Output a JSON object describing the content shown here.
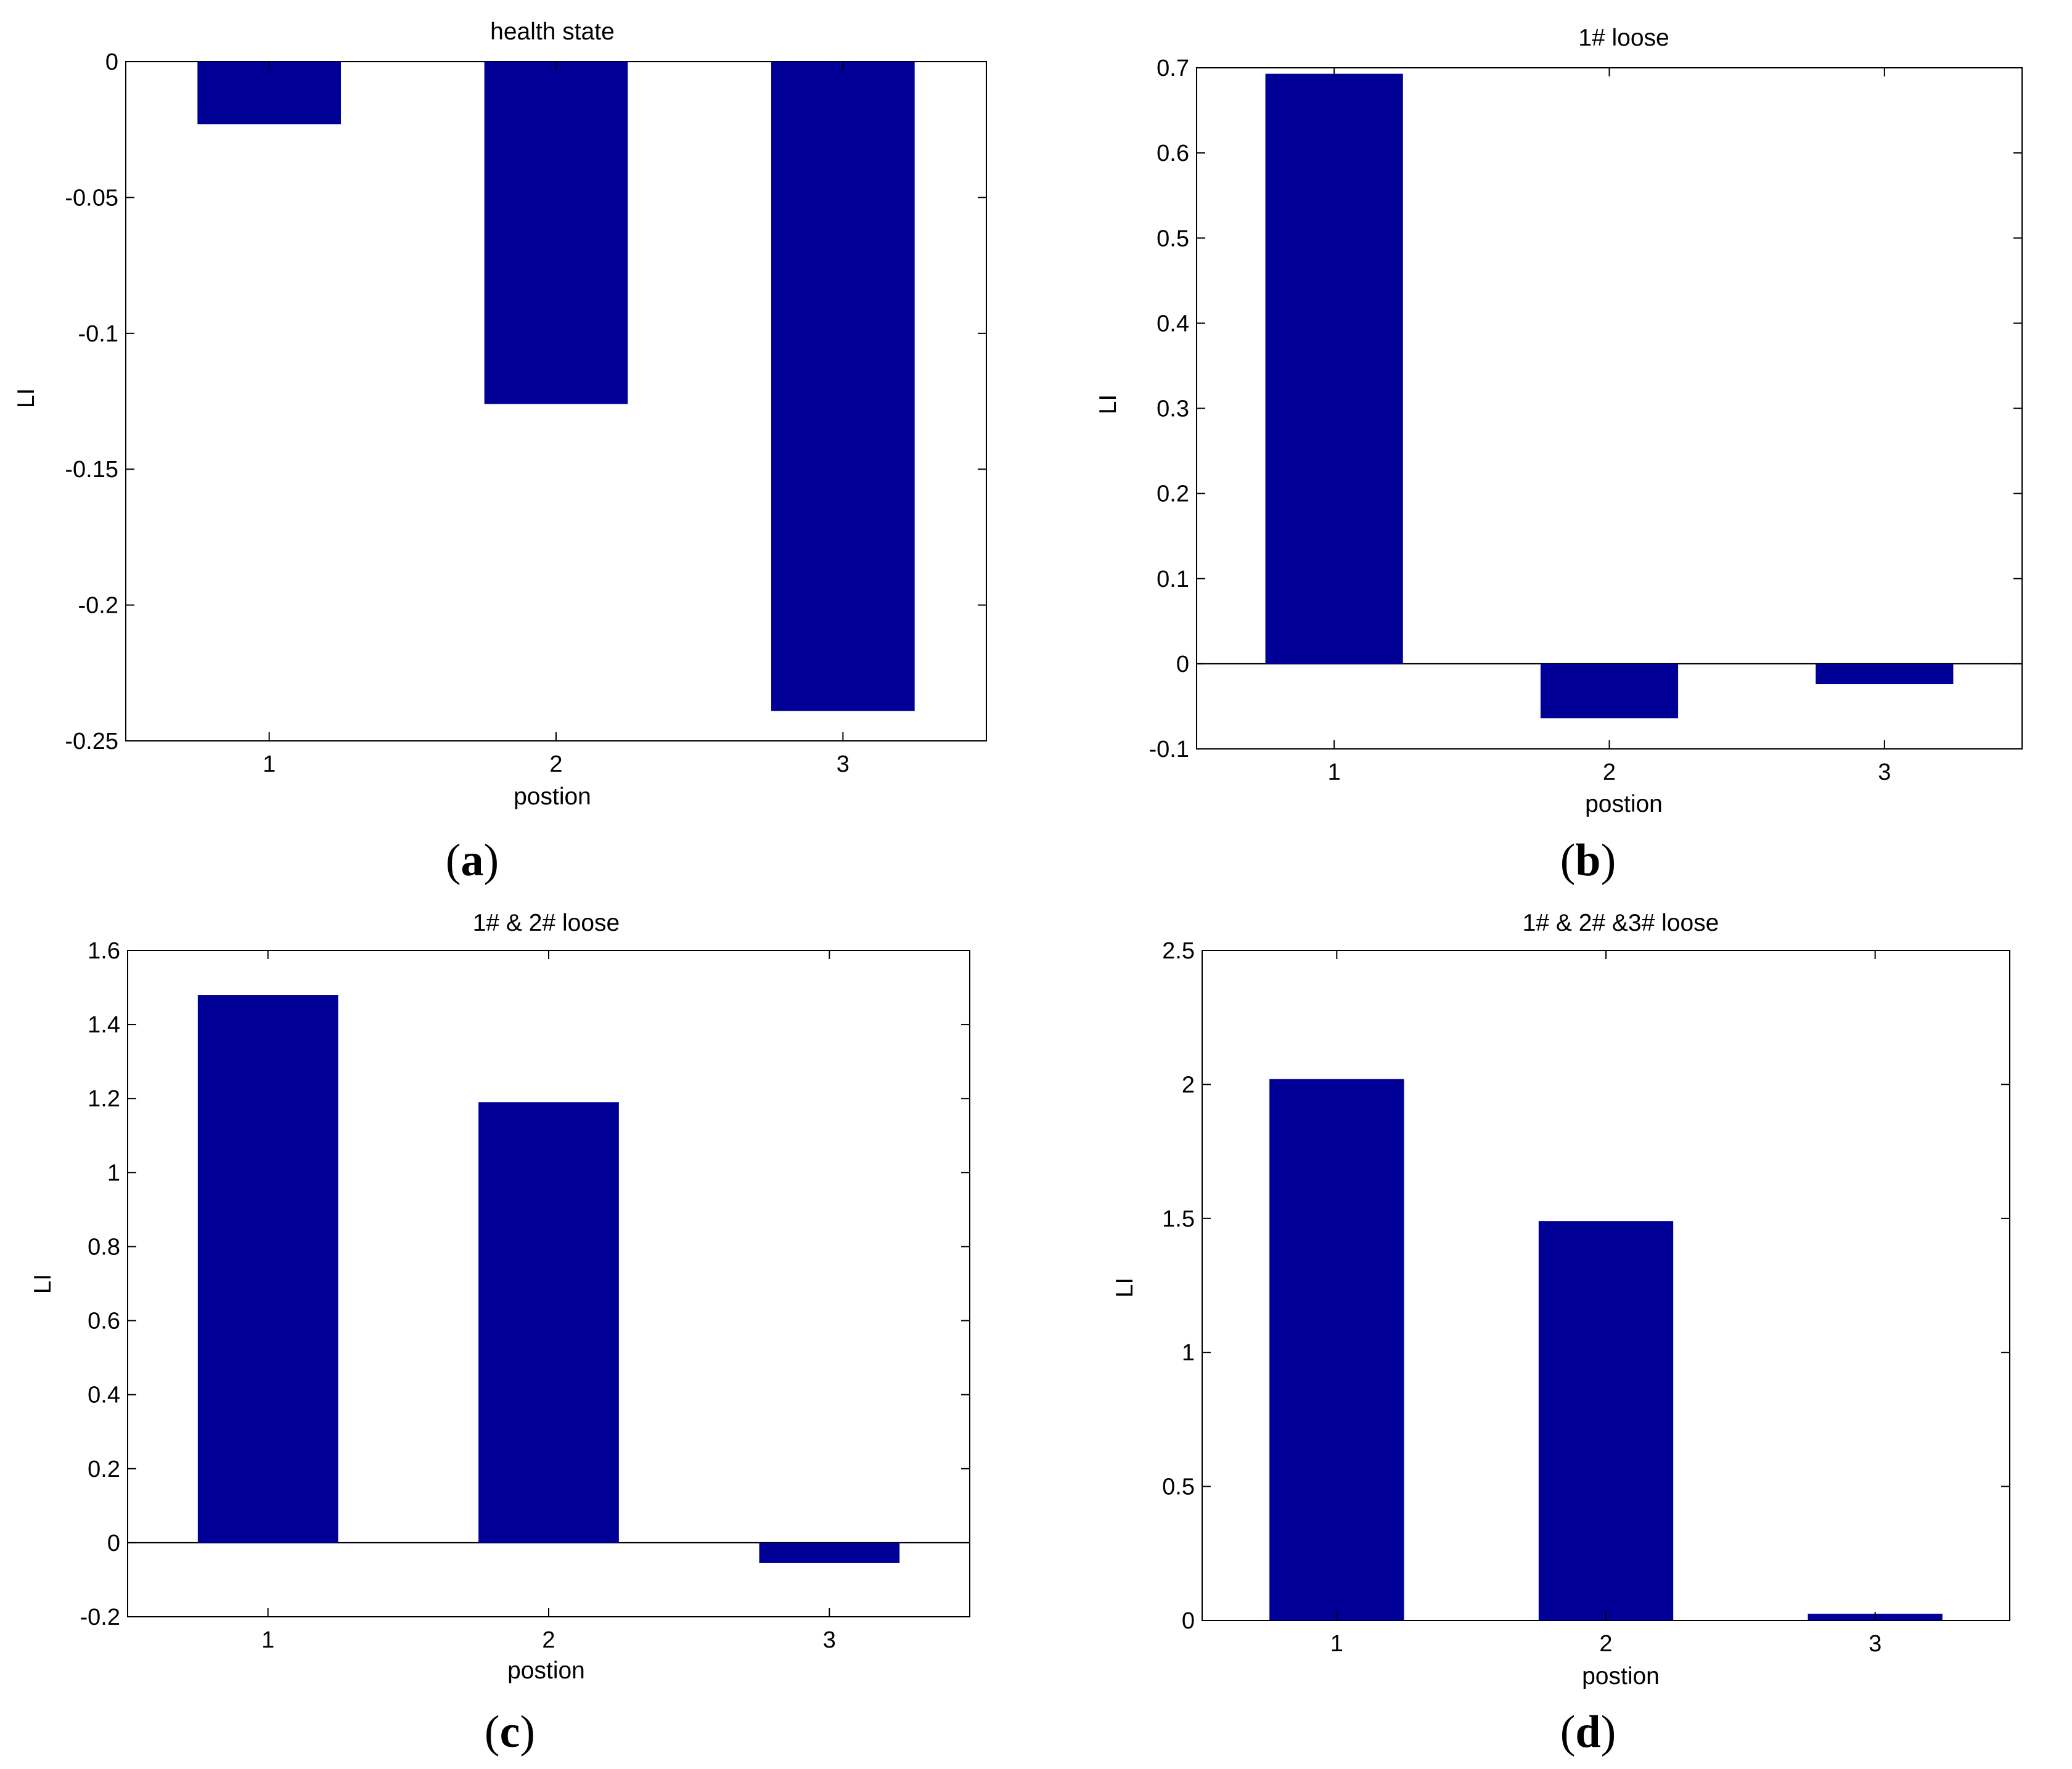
{
  "figure": {
    "bar_color": "#000096"
  },
  "chart_data": [
    {
      "type": "bar",
      "title": "health state",
      "caption": "a",
      "xlabel": "postion",
      "ylabel": "LI",
      "categories": [
        "1",
        "2",
        "3"
      ],
      "values": [
        -0.023,
        -0.126,
        -0.239
      ],
      "ylim": [
        -0.25,
        0
      ],
      "yticks": [
        0,
        -0.05,
        -0.1,
        -0.15,
        -0.2,
        -0.25
      ],
      "ytick_labels": [
        "0",
        "-0.05",
        "-0.1",
        "-0.15",
        "-0.2",
        "-0.25"
      ]
    },
    {
      "type": "bar",
      "title": "1# loose",
      "caption": "b",
      "xlabel": "postion",
      "ylabel": "LI",
      "categories": [
        "1",
        "2",
        "3"
      ],
      "values": [
        0.693,
        -0.064,
        -0.024
      ],
      "ylim": [
        -0.1,
        0.7
      ],
      "yticks": [
        0.7,
        0.6,
        0.5,
        0.4,
        0.3,
        0.2,
        0.1,
        0,
        -0.1
      ],
      "ytick_labels": [
        "0.7",
        "0.6",
        "0.5",
        "0.4",
        "0.3",
        "0.2",
        "0.1",
        "0",
        "-0.1"
      ]
    },
    {
      "type": "bar",
      "title": "1# & 2# loose",
      "caption": "c",
      "xlabel": "postion",
      "ylabel": "LI",
      "categories": [
        "1",
        "2",
        "3"
      ],
      "values": [
        1.48,
        1.19,
        -0.055
      ],
      "ylim": [
        -0.2,
        1.6
      ],
      "yticks": [
        1.6,
        1.4,
        1.2,
        1,
        0.8,
        0.6,
        0.4,
        0.2,
        0,
        -0.2
      ],
      "ytick_labels": [
        "1.6",
        "1.4",
        "1.2",
        "1",
        "0.8",
        "0.6",
        "0.4",
        "0.2",
        "0",
        "-0.2"
      ]
    },
    {
      "type": "bar",
      "title": "1# & 2# &3# loose",
      "caption": "d",
      "xlabel": "postion",
      "ylabel": "LI",
      "categories": [
        "1",
        "2",
        "3"
      ],
      "values": [
        2.02,
        1.49,
        0.025
      ],
      "ylim": [
        0,
        2.5
      ],
      "yticks": [
        2.5,
        2,
        1.5,
        1,
        0.5,
        0
      ],
      "ytick_labels": [
        "2.5",
        "2",
        "1.5",
        "1",
        "0.5",
        "0"
      ]
    }
  ]
}
